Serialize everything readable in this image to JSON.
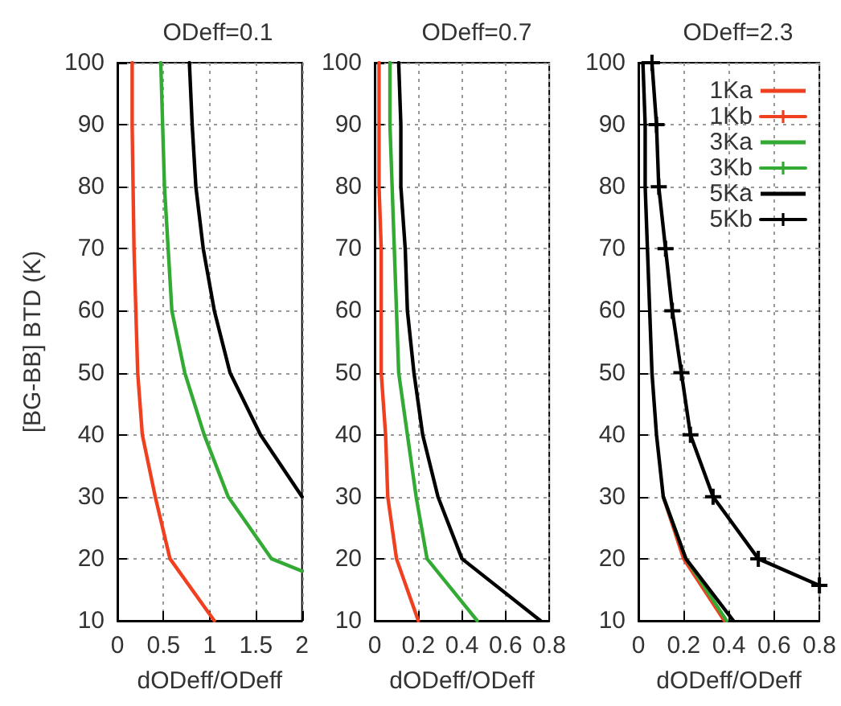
{
  "chart_data": [
    {
      "type": "line",
      "title": "ODeff=0.1",
      "xlabel": "dODeff/ODeff",
      "ylabel": "[BG-BB] BTD (K)",
      "xlim": [
        0,
        2
      ],
      "xticks": [
        0,
        0.5,
        1,
        1.5,
        2
      ],
      "ylim": [
        10,
        100
      ],
      "yticks": [
        10,
        20,
        30,
        40,
        50,
        60,
        70,
        80,
        90,
        100
      ],
      "grid": true,
      "series": [
        {
          "color": "#f04020",
          "x": [
            0.16,
            0.16,
            0.17,
            0.18,
            0.2,
            0.22,
            0.27,
            0.41,
            0.57,
            1.05
          ],
          "values": [
            100,
            90,
            80,
            70,
            60,
            50,
            40,
            30,
            20,
            10
          ]
        },
        {
          "color": "#33aa33",
          "x": [
            0.47,
            0.49,
            0.51,
            0.55,
            0.59,
            0.73,
            0.94,
            1.2,
            1.67,
            2.0
          ],
          "values": [
            100,
            90,
            80,
            70,
            60,
            50,
            40,
            30,
            20,
            18
          ]
        },
        {
          "color": "#000000",
          "x": [
            0.78,
            0.81,
            0.85,
            0.93,
            1.05,
            1.22,
            1.55,
            2.0
          ],
          "values": [
            100,
            90,
            80,
            70,
            60,
            50,
            40,
            30
          ]
        }
      ]
    },
    {
      "type": "line",
      "title": "ODeff=0.7",
      "xlabel": "dODeff/ODeff",
      "xlim": [
        0,
        0.8
      ],
      "xticks": [
        0,
        0.2,
        0.4,
        0.6,
        0.8
      ],
      "ylim": [
        10,
        100
      ],
      "yticks": [
        10,
        20,
        30,
        40,
        50,
        60,
        70,
        80,
        90,
        100
      ],
      "grid": true,
      "series": [
        {
          "color": "#f04020",
          "x": [
            0.02,
            0.02,
            0.02,
            0.03,
            0.03,
            0.03,
            0.05,
            0.06,
            0.1,
            0.2
          ],
          "values": [
            100,
            90,
            80,
            70,
            60,
            50,
            40,
            30,
            20,
            10
          ]
        },
        {
          "color": "#33aa33",
          "x": [
            0.07,
            0.07,
            0.08,
            0.09,
            0.1,
            0.11,
            0.15,
            0.19,
            0.24,
            0.47
          ],
          "values": [
            100,
            90,
            80,
            70,
            60,
            50,
            40,
            30,
            20,
            10
          ]
        },
        {
          "color": "#000000",
          "x": [
            0.11,
            0.12,
            0.12,
            0.14,
            0.15,
            0.18,
            0.22,
            0.29,
            0.4,
            0.76
          ],
          "values": [
            100,
            90,
            80,
            70,
            60,
            50,
            40,
            30,
            20,
            10
          ]
        }
      ]
    },
    {
      "type": "line",
      "title": "ODeff=2.3",
      "xlabel": "dODeff/ODeff",
      "xlim": [
        0,
        0.8
      ],
      "xticks": [
        0,
        0.2,
        0.4,
        0.6,
        0.8
      ],
      "ylim": [
        10,
        100
      ],
      "yticks": [
        10,
        20,
        30,
        40,
        50,
        60,
        70,
        80,
        90,
        100
      ],
      "grid": true,
      "legend": "top right",
      "series": [
        {
          "name": "1Ka",
          "color": "#f04020",
          "x": [
            null,
            null,
            null,
            null,
            null,
            null,
            null,
            0.11,
            0.2,
            0.38
          ],
          "values": [
            null,
            null,
            null,
            null,
            null,
            null,
            null,
            30,
            20,
            10
          ]
        },
        {
          "name": "1Kb",
          "color": "#f04020",
          "marker": "cross",
          "x": [
            null,
            null,
            null,
            null,
            null,
            null,
            null,
            null,
            null,
            null
          ],
          "values": [
            null,
            null,
            null,
            null,
            null,
            null,
            null,
            null,
            null,
            null
          ]
        },
        {
          "name": "3Ka",
          "color": "#33aa33",
          "x": [
            null,
            null,
            null,
            null,
            null,
            null,
            null,
            0.11,
            0.21,
            0.39
          ],
          "values": [
            null,
            null,
            null,
            null,
            null,
            null,
            null,
            30,
            20,
            10
          ]
        },
        {
          "name": "3Kb",
          "color": "#33aa33",
          "marker": "cross",
          "x": [
            null,
            null,
            null,
            null,
            null,
            null,
            null,
            null,
            null,
            null
          ],
          "values": [
            null,
            null,
            null,
            null,
            null,
            null,
            null,
            null,
            null,
            null
          ]
        },
        {
          "name": "5Ka",
          "color": "#000000",
          "x": [
            0.02,
            0.03,
            0.03,
            0.04,
            0.05,
            0.06,
            0.08,
            0.11,
            0.21,
            0.42
          ],
          "values": [
            100,
            90,
            80,
            70,
            60,
            50,
            40,
            30,
            20,
            10
          ]
        },
        {
          "name": "5Kb",
          "color": "#000000",
          "marker": "cross",
          "x": [
            0.06,
            0.08,
            0.09,
            0.12,
            0.15,
            0.19,
            0.23,
            0.33,
            0.53,
            0.8
          ],
          "values": [
            100,
            90,
            80,
            70,
            60,
            50,
            40,
            30,
            20,
            15.7
          ]
        }
      ]
    }
  ]
}
